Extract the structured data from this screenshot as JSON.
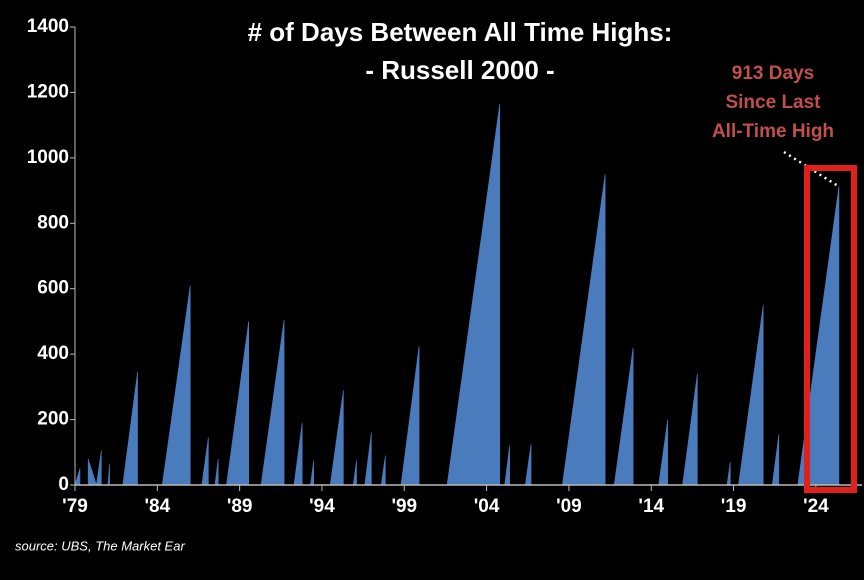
{
  "chart_data": {
    "type": "area",
    "title": "# of Days Between All Time Highs:",
    "subtitle": "- Russell 2000 -",
    "annotation": [
      "913 Days",
      "Since Last",
      "All-Time High"
    ],
    "source": "source: UBS, The Market Ear",
    "color": "#4a7bbd",
    "x": [
      1979.0,
      1979.3,
      1979.3,
      1979.8,
      1979.8,
      1980.3,
      1980.6,
      1980.6,
      1981.0,
      1981.1,
      1981.1,
      1981.9,
      1982.8,
      1982.8,
      1984.3,
      1986.0,
      1986.0,
      1986.7,
      1987.1,
      1987.1,
      1987.5,
      1987.7,
      1987.7,
      1988.2,
      1989.55,
      1989.55,
      1990.3,
      1991.7,
      1991.7,
      1992.3,
      1992.8,
      1992.8,
      1993.3,
      1993.5,
      1993.5,
      1994.5,
      1995.3,
      1995.3,
      1995.9,
      1996.1,
      1996.1,
      1996.6,
      1997.0,
      1997.0,
      1997.6,
      1997.85,
      1997.85,
      1998.8,
      1999.9,
      1999.9,
      2001.6,
      2004.8,
      2004.8,
      2005.1,
      2005.4,
      2005.4,
      2006.35,
      2006.7,
      2006.7,
      2008.6,
      2011.2,
      2011.2,
      2011.75,
      2012.9,
      2012.9,
      2014.45,
      2015.0,
      2015.0,
      2015.9,
      2016.8,
      2016.8,
      2018.6,
      2018.8,
      2018.8,
      2019.3,
      2020.8,
      2020.8,
      2021.35,
      2021.75,
      2021.75,
      2022.9,
      2025.4,
      2025.4
    ],
    "values": [
      0,
      50,
      0,
      0,
      80,
      0,
      105,
      0,
      0,
      65,
      0,
      0,
      345,
      0,
      0,
      610,
      0,
      0,
      145,
      0,
      0,
      80,
      0,
      0,
      500,
      0,
      0,
      505,
      0,
      0,
      190,
      0,
      0,
      75,
      0,
      0,
      290,
      0,
      0,
      75,
      0,
      0,
      160,
      0,
      0,
      90,
      0,
      0,
      425,
      0,
      0,
      1165,
      0,
      0,
      120,
      0,
      0,
      125,
      0,
      0,
      950,
      0,
      0,
      420,
      0,
      0,
      200,
      0,
      0,
      340,
      0,
      0,
      70,
      0,
      0,
      550,
      0,
      0,
      155,
      0,
      0,
      913,
      0
    ],
    "xlim": [
      1979,
      2026.8
    ],
    "ylim": [
      0,
      1400
    ],
    "xticks": [
      {
        "value": 1979,
        "label": "'79"
      },
      {
        "value": 1984,
        "label": "'84"
      },
      {
        "value": 1989,
        "label": "'89"
      },
      {
        "value": 1994,
        "label": "'94"
      },
      {
        "value": 1999,
        "label": "'99"
      },
      {
        "value": 2004,
        "label": "'04"
      },
      {
        "value": 2009,
        "label": "'09"
      },
      {
        "value": 2014,
        "label": "'14"
      },
      {
        "value": 2019,
        "label": "'19"
      },
      {
        "value": 2024,
        "label": "'24"
      }
    ],
    "yticks": [
      0,
      200,
      400,
      600,
      800,
      1000,
      1200,
      1400
    ]
  }
}
